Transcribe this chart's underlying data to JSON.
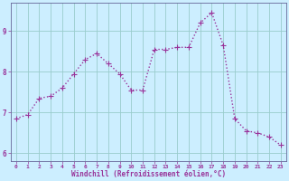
{
  "hours": [
    0,
    1,
    2,
    3,
    4,
    5,
    6,
    7,
    8,
    9,
    10,
    11,
    12,
    13,
    14,
    15,
    16,
    17,
    18,
    19,
    20,
    21,
    22,
    23
  ],
  "values": [
    6.85,
    6.95,
    7.35,
    7.4,
    7.6,
    7.95,
    8.3,
    8.45,
    8.2,
    7.95,
    7.55,
    7.55,
    8.55,
    8.55,
    8.6,
    8.6,
    9.2,
    9.45,
    8.65,
    6.85,
    6.55,
    6.5,
    6.4,
    6.2
  ],
  "line_color": "#993399",
  "marker": "P",
  "marker_size": 2.5,
  "bg_color": "#cceeff",
  "grid_color": "#99cccc",
  "axes_color": "#666699",
  "tick_color": "#993399",
  "xlabel": "Windchill (Refroidissement éolien,°C)",
  "ylim": [
    5.8,
    9.7
  ],
  "xlim": [
    -0.5,
    23.5
  ],
  "yticks": [
    6,
    7,
    8,
    9
  ],
  "xticks": [
    0,
    1,
    2,
    3,
    4,
    5,
    6,
    7,
    8,
    9,
    10,
    11,
    12,
    13,
    14,
    15,
    16,
    17,
    18,
    19,
    20,
    21,
    22,
    23
  ],
  "linewidth": 1.0,
  "figsize": [
    3.2,
    2.0
  ],
  "dpi": 100
}
